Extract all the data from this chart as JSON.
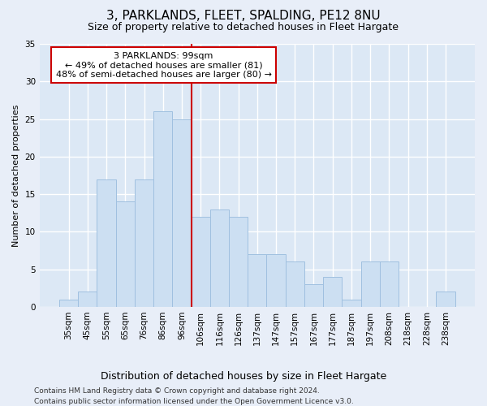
{
  "title": "3, PARKLANDS, FLEET, SPALDING, PE12 8NU",
  "subtitle": "Size of property relative to detached houses in Fleet Hargate",
  "xlabel": "Distribution of detached houses by size in Fleet Hargate",
  "ylabel": "Number of detached properties",
  "categories": [
    "35sqm",
    "45sqm",
    "55sqm",
    "65sqm",
    "76sqm",
    "86sqm",
    "96sqm",
    "106sqm",
    "116sqm",
    "126sqm",
    "137sqm",
    "147sqm",
    "157sqm",
    "167sqm",
    "177sqm",
    "187sqm",
    "197sqm",
    "208sqm",
    "218sqm",
    "228sqm",
    "238sqm"
  ],
  "values": [
    1,
    2,
    17,
    14,
    17,
    26,
    25,
    12,
    13,
    12,
    7,
    7,
    6,
    3,
    4,
    1,
    6,
    6,
    0,
    0,
    2
  ],
  "bar_color": "#ccdff2",
  "bar_edge_color": "#a0c0e0",
  "vline_index": 6,
  "annotation_title": "3 PARKLANDS: 99sqm",
  "annotation_line1": "← 49% of detached houses are smaller (81)",
  "annotation_line2": "48% of semi-detached houses are larger (80) →",
  "vline_color": "#cc0000",
  "box_edge_color": "#cc0000",
  "ylim": [
    0,
    35
  ],
  "yticks": [
    0,
    5,
    10,
    15,
    20,
    25,
    30,
    35
  ],
  "footer1": "Contains HM Land Registry data © Crown copyright and database right 2024.",
  "footer2": "Contains public sector information licensed under the Open Government Licence v3.0.",
  "background_color": "#e8eef8",
  "plot_background": "#dce8f5",
  "grid_color": "#ffffff",
  "title_fontsize": 11,
  "subtitle_fontsize": 9,
  "ylabel_fontsize": 8,
  "xlabel_fontsize": 9,
  "tick_fontsize": 7.5,
  "annot_fontsize": 8,
  "footer_fontsize": 6.5
}
